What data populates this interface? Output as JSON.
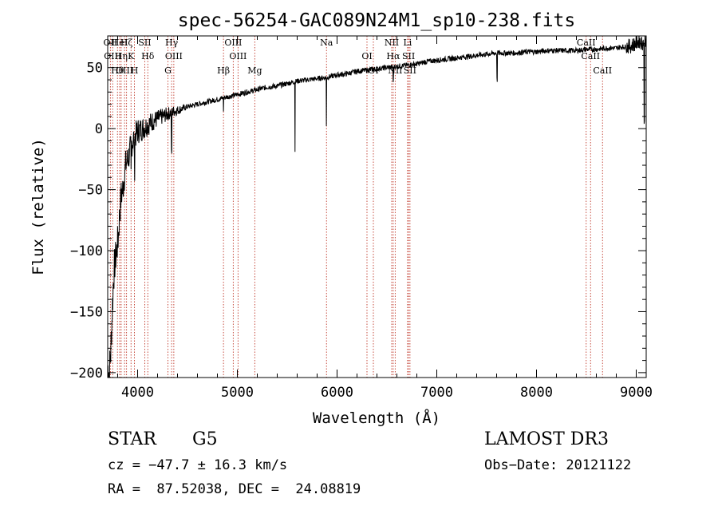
{
  "chart_data": {
    "type": "line",
    "title": "spec-56254-GAC089N24M1_sp10-238.fits",
    "xlabel": "Wavelength (Å)",
    "ylabel": "Flux (relative)",
    "xlim": [
      3700,
      9100
    ],
    "ylim": [
      -204,
      76
    ],
    "xticks": [
      4000,
      5000,
      6000,
      7000,
      8000,
      9000
    ],
    "yticks": [
      -200,
      -150,
      -100,
      -50,
      0,
      50
    ],
    "grid": false,
    "series": [
      {
        "x": [
          3700,
          3715,
          3730,
          3745,
          3760,
          3775,
          3790,
          3805,
          3820,
          3835,
          3850,
          3865,
          3880,
          3900,
          3920,
          3940,
          3960,
          3980,
          4000,
          4050,
          4100,
          4150,
          4200,
          4250,
          4300,
          4350,
          4400,
          4500,
          4600,
          4700,
          4800,
          4900,
          5000,
          5100,
          5200,
          5300,
          5400,
          5500,
          5600,
          5700,
          5800,
          5900,
          6000,
          6100,
          6200,
          6300,
          6400,
          6500,
          6600,
          6700,
          6800,
          6900,
          7000,
          7100,
          7200,
          7300,
          7400,
          7500,
          7600,
          7700,
          7800,
          7900,
          8000,
          8100,
          8200,
          8300,
          8400,
          8500,
          8600,
          8700,
          8800,
          8850,
          8900,
          8950,
          9000,
          9030,
          9060,
          9090
        ],
        "y": [
          -195,
          -200,
          -185,
          -150,
          -120,
          -108,
          -100,
          -90,
          -70,
          -55,
          -50,
          -40,
          -30,
          -25,
          -20,
          -12,
          -8,
          -5,
          -2,
          0,
          3,
          6,
          8,
          10,
          12,
          14,
          15,
          18,
          20,
          22,
          24,
          26,
          28,
          30,
          32,
          34,
          35,
          37,
          39,
          40,
          41,
          42,
          44,
          45,
          47,
          48,
          49,
          50,
          51,
          52,
          53,
          55,
          56,
          57,
          58,
          59,
          60,
          61,
          62,
          62,
          62,
          63,
          63,
          64,
          64,
          64,
          64,
          65,
          65,
          66,
          66,
          67,
          67,
          68,
          70,
          72,
          70,
          73
        ],
        "absorption": [
          {
            "x": 5578,
            "depth": 58
          },
          {
            "x": 5893,
            "depth": 40
          },
          {
            "x": 7605,
            "depth": 22
          },
          {
            "x": 6563,
            "depth": 12
          },
          {
            "x": 4340,
            "depth": 35
          },
          {
            "x": 4861,
            "depth": 10
          },
          {
            "x": 3934,
            "depth": 25
          },
          {
            "x": 3968,
            "depth": 25
          },
          {
            "x": 9080,
            "depth": 70
          }
        ]
      }
    ],
    "lines": [
      {
        "x": 3727,
        "label": "OII"
      },
      {
        "x": 3750,
        "label": "OIII"
      },
      {
        "x": 3798,
        "label": "Hθ"
      },
      {
        "x": 3820,
        "label": "HeI"
      },
      {
        "x": 3835,
        "label": "Hη"
      },
      {
        "x": 3869,
        "label": "OIII"
      },
      {
        "x": 3889,
        "label": "Hζ"
      },
      {
        "x": 3934,
        "label": "K"
      },
      {
        "x": 3968,
        "label": "H"
      },
      {
        "x": 4072,
        "label": "SII"
      },
      {
        "x": 4102,
        "label": "Hδ"
      },
      {
        "x": 4304,
        "label": "G"
      },
      {
        "x": 4341,
        "label": "Hγ"
      },
      {
        "x": 4363,
        "label": "OIII"
      },
      {
        "x": 4861,
        "label": "Hβ"
      },
      {
        "x": 4959,
        "label": "OIII"
      },
      {
        "x": 5007,
        "label": "OIII"
      },
      {
        "x": 5175,
        "label": "Mg"
      },
      {
        "x": 5894,
        "label": "Na"
      },
      {
        "x": 6300,
        "label": "OI"
      },
      {
        "x": 6364,
        "label": "OI"
      },
      {
        "x": 6548,
        "label": "NII"
      },
      {
        "x": 6563,
        "label": "Hα"
      },
      {
        "x": 6583,
        "label": "NII"
      },
      {
        "x": 6707,
        "label": "Li"
      },
      {
        "x": 6717,
        "label": "SII"
      },
      {
        "x": 6731,
        "label": "SII"
      },
      {
        "x": 8498,
        "label": "CaII"
      },
      {
        "x": 8542,
        "label": "CaII"
      },
      {
        "x": 8662,
        "label": "CaII"
      }
    ]
  },
  "info": {
    "class_label": "STAR",
    "subclass": "G5",
    "survey": "LAMOST DR3",
    "cz": "cz = −47.7 ± 16.3 km/s",
    "obs_date": "Obs−Date: 20121122",
    "radec": "RA =  87.52038, DEC =  24.08819"
  }
}
